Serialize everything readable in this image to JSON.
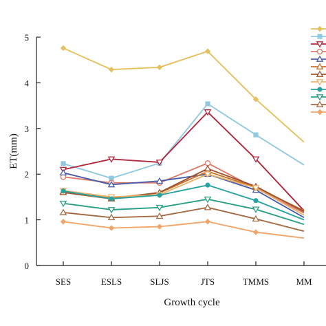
{
  "chart_data": {
    "type": "line",
    "xlabel": "Growth cycle",
    "ylabel": "ET(mm)",
    "categories": [
      "SES",
      "ESLS",
      "SLJS",
      "JTS",
      "TMMS",
      "MM"
    ],
    "ylim": [
      0,
      5
    ],
    "yticks": [
      0,
      1,
      2,
      3,
      4,
      5
    ],
    "grid": false,
    "legend": "top-right",
    "series": [
      {
        "color": "#e4c15e",
        "marker": "diamond",
        "values": [
          4.76,
          4.29,
          4.34,
          4.69,
          3.64,
          2.7
        ]
      },
      {
        "color": "#93c9df",
        "marker": "square",
        "values": [
          2.23,
          1.91,
          2.24,
          3.54,
          2.86,
          2.2
        ]
      },
      {
        "color": "#b0283e",
        "marker": "triangle-down",
        "values": [
          2.1,
          2.33,
          2.26,
          3.36,
          2.33,
          1.2
        ]
      },
      {
        "color": "#e07a6c",
        "marker": "circle-open",
        "values": [
          1.94,
          1.81,
          1.81,
          2.24,
          1.69,
          1.15
        ]
      },
      {
        "color": "#4a5da8",
        "marker": "triangle-up",
        "values": [
          2.03,
          1.77,
          1.85,
          2.0,
          1.65,
          1.05
        ]
      },
      {
        "color": "#c8732c",
        "marker": "triangle-up",
        "values": [
          1.62,
          1.48,
          1.59,
          2.06,
          1.71,
          1.2
        ]
      },
      {
        "color": "#a0522d",
        "marker": "triangle-up",
        "values": [
          1.6,
          1.46,
          1.6,
          2.12,
          1.73,
          1.18
        ]
      },
      {
        "color": "#e9b36a",
        "marker": "triangle-down",
        "values": [
          1.64,
          1.5,
          1.55,
          2.0,
          1.7,
          1.1
        ]
      },
      {
        "color": "#2aa3a0",
        "marker": "circle",
        "values": [
          1.63,
          1.46,
          1.54,
          1.76,
          1.42,
          1.0
        ]
      },
      {
        "color": "#2a9f86",
        "marker": "triangle-down",
        "values": [
          1.36,
          1.22,
          1.27,
          1.45,
          1.23,
          0.9
        ]
      },
      {
        "color": "#a56a44",
        "marker": "triangle-up",
        "values": [
          1.16,
          1.05,
          1.08,
          1.27,
          1.02,
          0.75
        ]
      },
      {
        "color": "#f0a56a",
        "marker": "diamond",
        "values": [
          0.96,
          0.82,
          0.85,
          0.96,
          0.73,
          0.6
        ]
      }
    ]
  }
}
